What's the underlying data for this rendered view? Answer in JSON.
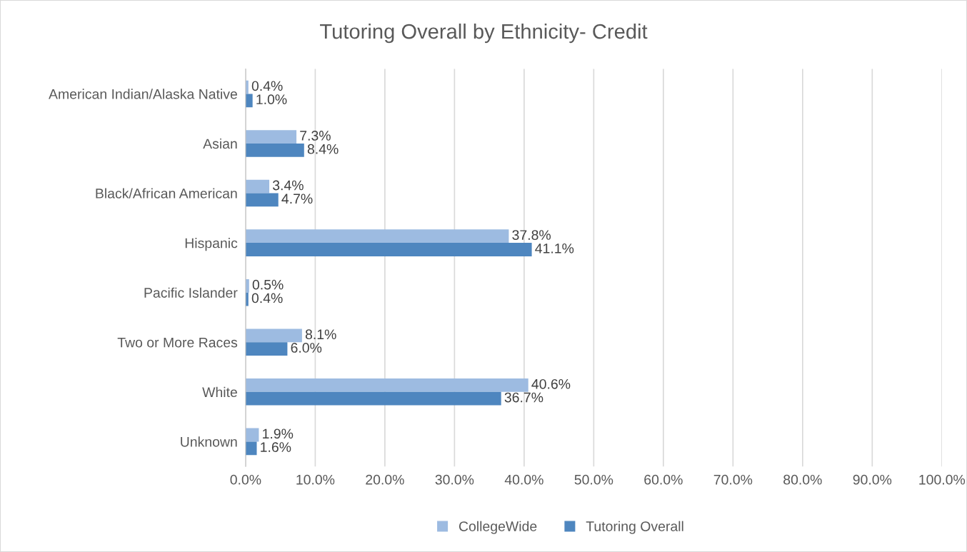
{
  "chart_data": {
    "type": "bar",
    "orientation": "horizontal",
    "title": "Tutoring Overall by Ethnicity- Credit",
    "categories": [
      "American Indian/Alaska Native",
      "Asian",
      "Black/African American",
      "Hispanic",
      "Pacific Islander",
      "Two or More Races",
      "White",
      "Unknown"
    ],
    "series": [
      {
        "name": "CollegeWide",
        "color": "#9dbbe1",
        "values": [
          0.4,
          7.3,
          3.4,
          37.8,
          0.5,
          8.1,
          40.6,
          1.9
        ],
        "value_labels": [
          "0.4%",
          "7.3%",
          "3.4%",
          "37.8%",
          "0.5%",
          "8.1%",
          "40.6%",
          "1.9%"
        ]
      },
      {
        "name": "Tutoring Overall",
        "color": "#4e86bf",
        "values": [
          1.0,
          8.4,
          4.7,
          41.1,
          0.4,
          6.0,
          36.7,
          1.6
        ],
        "value_labels": [
          "1.0%",
          "8.4%",
          "4.7%",
          "41.1%",
          "0.4%",
          "6.0%",
          "36.7%",
          "1.6%"
        ]
      }
    ],
    "xlim": [
      0,
      100
    ],
    "xticks": [
      {
        "value": 0,
        "label": "0.0%"
      },
      {
        "value": 10,
        "label": "10.0%"
      },
      {
        "value": 20,
        "label": "20.0%"
      },
      {
        "value": 30,
        "label": "30.0%"
      },
      {
        "value": 40,
        "label": "40.0%"
      },
      {
        "value": 50,
        "label": "50.0%"
      },
      {
        "value": 60,
        "label": "60.0%"
      },
      {
        "value": 70,
        "label": "70.0%"
      },
      {
        "value": 80,
        "label": "80.0%"
      },
      {
        "value": 90,
        "label": "90.0%"
      },
      {
        "value": 100,
        "label": "100.0%"
      }
    ],
    "grid": "x",
    "legend": "bottom"
  }
}
